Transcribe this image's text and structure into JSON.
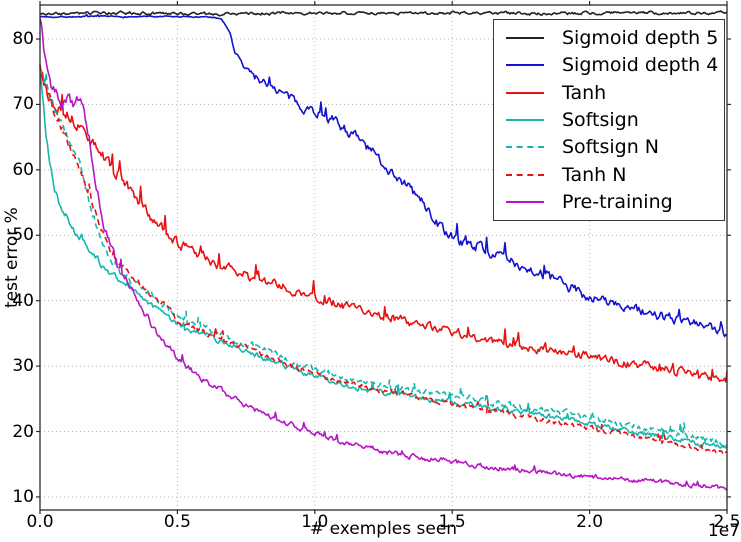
{
  "chart_data": {
    "type": "line",
    "title": "",
    "xlabel": "# exemples seen",
    "ylabel": "test error %",
    "x_offset_label": "1e7",
    "x_units": "examples (value × 1e7)",
    "xlim": [
      0,
      2.5
    ],
    "ylim": [
      8,
      85.2
    ],
    "grid": true,
    "grid_style": "dotted",
    "legend_position": "upper right",
    "x_ticks": [
      0,
      0.5,
      1.0,
      1.5,
      2.0,
      2.5
    ],
    "x_tick_labels": [
      "0.0",
      "0.5",
      "1.0",
      "1.5",
      "2.0",
      "2.5"
    ],
    "y_ticks": [
      10,
      20,
      30,
      40,
      50,
      60,
      70,
      80
    ],
    "y_tick_labels": [
      "10",
      "20",
      "30",
      "40",
      "50",
      "60",
      "70",
      "80"
    ],
    "series": [
      {
        "name": "Sigmoid depth 5",
        "color": "#222222",
        "style": "solid",
        "seed": 3,
        "spike": 0,
        "noise": [
          [
            0,
            0.25
          ],
          [
            2.5,
            0.25
          ]
        ],
        "points": [
          [
            0,
            83.8
          ],
          [
            0.3,
            84
          ],
          [
            0.6,
            83.8
          ],
          [
            0.9,
            84
          ],
          [
            1.2,
            83.9
          ],
          [
            1.5,
            84
          ],
          [
            1.8,
            83.9
          ],
          [
            2.1,
            84
          ],
          [
            2.5,
            84
          ]
        ]
      },
      {
        "name": "Sigmoid depth 4",
        "color": "#1212cf",
        "style": "solid",
        "seed": 7,
        "spike": 0.02,
        "noise": [
          [
            0,
            0.12
          ],
          [
            0.68,
            0.12
          ],
          [
            0.75,
            0.7
          ],
          [
            1.1,
            0.9
          ],
          [
            2.5,
            0.9
          ]
        ],
        "points": [
          [
            0,
            83.4
          ],
          [
            0.3,
            83.4
          ],
          [
            0.6,
            83.4
          ],
          [
            0.66,
            83.2
          ],
          [
            0.69,
            81
          ],
          [
            0.71,
            78
          ],
          [
            0.74,
            75.8
          ],
          [
            0.78,
            74.2
          ],
          [
            0.82,
            73.4
          ],
          [
            0.86,
            72.4
          ],
          [
            0.9,
            71.2
          ],
          [
            0.95,
            69.8
          ],
          [
            1.0,
            69
          ],
          [
            1.05,
            68
          ],
          [
            1.1,
            66.6
          ],
          [
            1.15,
            65
          ],
          [
            1.2,
            63
          ],
          [
            1.25,
            61
          ],
          [
            1.3,
            59
          ],
          [
            1.35,
            57
          ],
          [
            1.4,
            54.6
          ],
          [
            1.45,
            51.6
          ],
          [
            1.5,
            49.6
          ],
          [
            1.55,
            48.6
          ],
          [
            1.6,
            48.4
          ],
          [
            1.65,
            47.2
          ],
          [
            1.7,
            46.2
          ],
          [
            1.75,
            45.4
          ],
          [
            1.8,
            44.6
          ],
          [
            1.85,
            43.6
          ],
          [
            1.9,
            42.6
          ],
          [
            1.95,
            41.6
          ],
          [
            2.0,
            40.6
          ],
          [
            2.1,
            39.4
          ],
          [
            2.2,
            38.2
          ],
          [
            2.3,
            37.2
          ],
          [
            2.4,
            36.2
          ],
          [
            2.5,
            35
          ]
        ]
      },
      {
        "name": "Tanh",
        "color": "#e81212",
        "style": "solid",
        "seed": 13,
        "spike": 0.035,
        "noise": [
          [
            0,
            1.1
          ],
          [
            0.5,
            0.9
          ],
          [
            1.0,
            0.8
          ],
          [
            2.5,
            0.7
          ]
        ],
        "points": [
          [
            0,
            76
          ],
          [
            0.03,
            71
          ],
          [
            0.06,
            69.5
          ],
          [
            0.1,
            68.5
          ],
          [
            0.15,
            66.5
          ],
          [
            0.2,
            63.5
          ],
          [
            0.25,
            61
          ],
          [
            0.3,
            58.5
          ],
          [
            0.35,
            55.5
          ],
          [
            0.4,
            53
          ],
          [
            0.45,
            51
          ],
          [
            0.5,
            48.8
          ],
          [
            0.55,
            47.6
          ],
          [
            0.6,
            46.5
          ],
          [
            0.65,
            45.5
          ],
          [
            0.7,
            44.6
          ],
          [
            0.75,
            43.8
          ],
          [
            0.8,
            43.1
          ],
          [
            0.85,
            42.5
          ],
          [
            0.9,
            42
          ],
          [
            0.95,
            41.2
          ],
          [
            1.0,
            40.5
          ],
          [
            1.1,
            39.3
          ],
          [
            1.2,
            38.2
          ],
          [
            1.3,
            37.2
          ],
          [
            1.4,
            36.2
          ],
          [
            1.5,
            35.2
          ],
          [
            1.6,
            34.2
          ],
          [
            1.7,
            33.5
          ],
          [
            1.8,
            32.8
          ],
          [
            1.9,
            32.2
          ],
          [
            2.0,
            31.5
          ],
          [
            2.1,
            30.7
          ],
          [
            2.2,
            30
          ],
          [
            2.3,
            29.4
          ],
          [
            2.4,
            28.6
          ],
          [
            2.5,
            28
          ]
        ]
      },
      {
        "name": "Softsign",
        "color": "#17b6ad",
        "style": "solid",
        "seed": 21,
        "spike": 0.02,
        "noise": [
          [
            0,
            0.9
          ],
          [
            0.3,
            0.5
          ],
          [
            2.5,
            0.5
          ]
        ],
        "points": [
          [
            0,
            76
          ],
          [
            0.02,
            66
          ],
          [
            0.05,
            57.5
          ],
          [
            0.08,
            53.8
          ],
          [
            0.1,
            52.5
          ],
          [
            0.14,
            50
          ],
          [
            0.2,
            46.8
          ],
          [
            0.25,
            44.5
          ],
          [
            0.3,
            43
          ],
          [
            0.32,
            42.7
          ],
          [
            0.36,
            40.8
          ],
          [
            0.4,
            39.3
          ],
          [
            0.45,
            38
          ],
          [
            0.5,
            36.5
          ],
          [
            0.55,
            35.6
          ],
          [
            0.6,
            34.8
          ],
          [
            0.65,
            34
          ],
          [
            0.7,
            33.2
          ],
          [
            0.75,
            32.4
          ],
          [
            0.8,
            31.5
          ],
          [
            0.85,
            30.7
          ],
          [
            0.9,
            30
          ],
          [
            0.95,
            29.2
          ],
          [
            1.0,
            28.5
          ],
          [
            1.05,
            27.8
          ],
          [
            1.1,
            27.2
          ],
          [
            1.15,
            26.7
          ],
          [
            1.2,
            26.3
          ],
          [
            1.3,
            25.7
          ],
          [
            1.4,
            25.1
          ],
          [
            1.5,
            24.4
          ],
          [
            1.6,
            23.9
          ],
          [
            1.7,
            23.3
          ],
          [
            1.8,
            22.6
          ],
          [
            1.9,
            21.9
          ],
          [
            2.0,
            21.1
          ],
          [
            2.1,
            20.3
          ],
          [
            2.2,
            19.6
          ],
          [
            2.3,
            18.9
          ],
          [
            2.4,
            18.2
          ],
          [
            2.5,
            17.7
          ]
        ]
      },
      {
        "name": "Softsign N",
        "color": "#17b6ad",
        "style": "dashed",
        "seed": 29,
        "spike": 0.02,
        "noise": [
          [
            0,
            0.9
          ],
          [
            0.3,
            0.6
          ],
          [
            2.5,
            0.55
          ]
        ],
        "points": [
          [
            0,
            76
          ],
          [
            0.03,
            72
          ],
          [
            0.06,
            69
          ],
          [
            0.1,
            65.5
          ],
          [
            0.13,
            62.5
          ],
          [
            0.16,
            58.5
          ],
          [
            0.19,
            53.5
          ],
          [
            0.22,
            49.5
          ],
          [
            0.25,
            46.5
          ],
          [
            0.3,
            44
          ],
          [
            0.35,
            42.5
          ],
          [
            0.4,
            41
          ],
          [
            0.45,
            39.3
          ],
          [
            0.5,
            37.5
          ],
          [
            0.6,
            35.8
          ],
          [
            0.7,
            34.2
          ],
          [
            0.8,
            32.6
          ],
          [
            0.9,
            31
          ],
          [
            1.0,
            29.5
          ],
          [
            1.1,
            28.2
          ],
          [
            1.2,
            27.4
          ],
          [
            1.3,
            26.7
          ],
          [
            1.4,
            26
          ],
          [
            1.5,
            25.4
          ],
          [
            1.6,
            24.8
          ],
          [
            1.7,
            24.1
          ],
          [
            1.8,
            23.4
          ],
          [
            1.9,
            22.8
          ],
          [
            2.0,
            22.1
          ],
          [
            2.1,
            21.2
          ],
          [
            2.2,
            20.4
          ],
          [
            2.3,
            19.7
          ],
          [
            2.4,
            18.9
          ],
          [
            2.5,
            18.2
          ]
        ]
      },
      {
        "name": "Tanh N",
        "color": "#e81212",
        "style": "dashed",
        "seed": 37,
        "spike": 0.02,
        "noise": [
          [
            0,
            0.9
          ],
          [
            0.3,
            0.5
          ],
          [
            2.5,
            0.45
          ]
        ],
        "points": [
          [
            0,
            76
          ],
          [
            0.03,
            71.5
          ],
          [
            0.06,
            68
          ],
          [
            0.1,
            64.5
          ],
          [
            0.13,
            61.5
          ],
          [
            0.16,
            58.5
          ],
          [
            0.19,
            55
          ],
          [
            0.22,
            51.5
          ],
          [
            0.25,
            48.5
          ],
          [
            0.28,
            46.2
          ],
          [
            0.31,
            44.7
          ],
          [
            0.35,
            42.8
          ],
          [
            0.4,
            40.8
          ],
          [
            0.45,
            39.5
          ],
          [
            0.5,
            37
          ],
          [
            0.55,
            36.2
          ],
          [
            0.6,
            35.2
          ],
          [
            0.65,
            34.3
          ],
          [
            0.7,
            33.5
          ],
          [
            0.75,
            32.7
          ],
          [
            0.8,
            31.9
          ],
          [
            0.85,
            31
          ],
          [
            0.9,
            30.2
          ],
          [
            0.95,
            29.5
          ],
          [
            1.0,
            28.8
          ],
          [
            1.05,
            28.1
          ],
          [
            1.1,
            27.5
          ],
          [
            1.2,
            26.6
          ],
          [
            1.3,
            25.8
          ],
          [
            1.4,
            25
          ],
          [
            1.5,
            24.2
          ],
          [
            1.6,
            23.4
          ],
          [
            1.7,
            22.7
          ],
          [
            1.8,
            22
          ],
          [
            1.9,
            21.3
          ],
          [
            2.0,
            20.5
          ],
          [
            2.1,
            19.8
          ],
          [
            2.2,
            19
          ],
          [
            2.3,
            18.2
          ],
          [
            2.4,
            17.4
          ],
          [
            2.5,
            16.5
          ]
        ]
      },
      {
        "name": "Pre-training",
        "color": "#b517c4",
        "style": "solid",
        "seed": 45,
        "spike": 0.02,
        "noise": [
          [
            0,
            1.3
          ],
          [
            0.18,
            1.0
          ],
          [
            0.4,
            0.6
          ],
          [
            0.8,
            0.45
          ],
          [
            2.5,
            0.4
          ]
        ],
        "points": [
          [
            0,
            84
          ],
          [
            0.02,
            77
          ],
          [
            0.04,
            73
          ],
          [
            0.06,
            71.5
          ],
          [
            0.08,
            70.6
          ],
          [
            0.1,
            71
          ],
          [
            0.12,
            70.4
          ],
          [
            0.14,
            71.2
          ],
          [
            0.16,
            69.2
          ],
          [
            0.18,
            64.5
          ],
          [
            0.2,
            58.8
          ],
          [
            0.22,
            54.2
          ],
          [
            0.24,
            50.6
          ],
          [
            0.26,
            47.8
          ],
          [
            0.28,
            45.8
          ],
          [
            0.3,
            44.2
          ],
          [
            0.32,
            42.6
          ],
          [
            0.34,
            41
          ],
          [
            0.36,
            39.6
          ],
          [
            0.38,
            38.2
          ],
          [
            0.4,
            36.8
          ],
          [
            0.44,
            34.2
          ],
          [
            0.48,
            32.2
          ],
          [
            0.52,
            30.4
          ],
          [
            0.56,
            29
          ],
          [
            0.6,
            27.8
          ],
          [
            0.65,
            26.4
          ],
          [
            0.7,
            25.2
          ],
          [
            0.75,
            24
          ],
          [
            0.8,
            23
          ],
          [
            0.85,
            22
          ],
          [
            0.9,
            21.2
          ],
          [
            0.95,
            20.4
          ],
          [
            1.0,
            19.8
          ],
          [
            1.05,
            19
          ],
          [
            1.1,
            18.4
          ],
          [
            1.15,
            17.9
          ],
          [
            1.2,
            17.5
          ],
          [
            1.3,
            16.5
          ],
          [
            1.4,
            15.9
          ],
          [
            1.5,
            15.4
          ],
          [
            1.6,
            14.8
          ],
          [
            1.7,
            14.3
          ],
          [
            1.8,
            13.8
          ],
          [
            1.9,
            13.4
          ],
          [
            2.0,
            13.1
          ],
          [
            2.1,
            12.8
          ],
          [
            2.2,
            12.5
          ],
          [
            2.3,
            12.1
          ],
          [
            2.4,
            11.7
          ],
          [
            2.5,
            11.3
          ]
        ]
      }
    ],
    "colors": {
      "grid": "#b5b5b5",
      "axis": "#2b2b2b",
      "text": "#000000"
    }
  }
}
